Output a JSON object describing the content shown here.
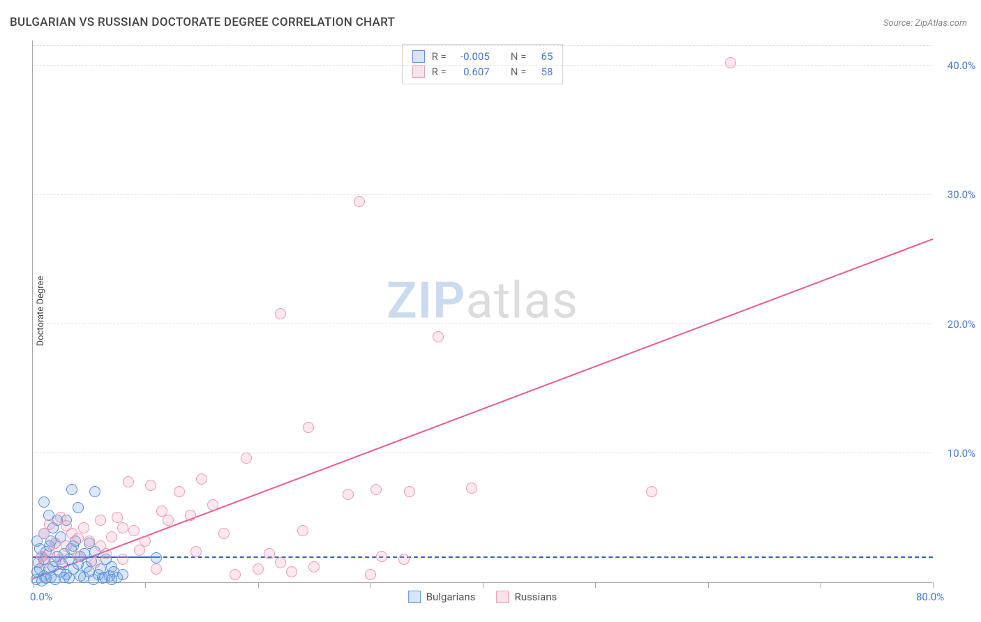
{
  "title": "BULGARIAN VS RUSSIAN DOCTORATE DEGREE CORRELATION CHART",
  "source_label": "Source: ",
  "source_name": "ZipAtlas.com",
  "ylabel": "Doctorate Degree",
  "watermark_a": "ZIP",
  "watermark_b": "atlas",
  "chart": {
    "type": "scatter",
    "xlim": [
      0,
      80
    ],
    "ylim": [
      0,
      42
    ],
    "ytick_values": [
      10,
      20,
      30,
      40
    ],
    "ytick_labels": [
      "10.0%",
      "20.0%",
      "30.0%",
      "40.0%"
    ],
    "xtick_values": [
      0,
      10,
      20,
      30,
      40,
      50,
      60,
      70,
      80
    ],
    "xtick_label_0": "0.0%",
    "xtick_label_80": "80.0%",
    "grid_color": "#dddddd",
    "axis_color": "#aaaaaa",
    "background_color": "#ffffff",
    "series": [
      {
        "name": "Bulgarians",
        "color_fill": "rgba(115,163,230,0.25)",
        "color_stroke": "#5a8fd6",
        "marker_class": "blue",
        "r_value": "-0.005",
        "n_value": "65",
        "trend": {
          "x1": 0,
          "y1": 1.9,
          "x2": 80,
          "y2": 1.9,
          "solid_until_x": 11
        },
        "points": [
          [
            0.3,
            0.2
          ],
          [
            0.4,
            0.8
          ],
          [
            0.6,
            1.0
          ],
          [
            0.5,
            1.5
          ],
          [
            0.8,
            2.0
          ],
          [
            1.0,
            0.5
          ],
          [
            1.0,
            1.8
          ],
          [
            1.2,
            2.4
          ],
          [
            1.4,
            1.0
          ],
          [
            1.5,
            2.8
          ],
          [
            1.6,
            0.4
          ],
          [
            1.8,
            1.2
          ],
          [
            2.0,
            3.0
          ],
          [
            2.0,
            1.6
          ],
          [
            2.2,
            2.0
          ],
          [
            2.4,
            0.8
          ],
          [
            2.5,
            3.5
          ],
          [
            2.6,
            1.4
          ],
          [
            2.8,
            2.2
          ],
          [
            3.0,
            0.6
          ],
          [
            3.0,
            4.8
          ],
          [
            3.2,
            1.8
          ],
          [
            3.4,
            2.6
          ],
          [
            3.5,
            7.2
          ],
          [
            3.6,
            1.0
          ],
          [
            3.8,
            3.2
          ],
          [
            4.0,
            1.4
          ],
          [
            4.0,
            5.8
          ],
          [
            4.2,
            2.0
          ],
          [
            4.5,
            0.4
          ],
          [
            4.8,
            1.2
          ],
          [
            5.0,
            3.0
          ],
          [
            5.0,
            0.8
          ],
          [
            5.2,
            1.6
          ],
          [
            5.5,
            2.4
          ],
          [
            5.5,
            7.0
          ],
          [
            5.8,
            0.6
          ],
          [
            6.0,
            1.0
          ],
          [
            6.2,
            0.3
          ],
          [
            6.5,
            1.8
          ],
          [
            6.8,
            0.5
          ],
          [
            7.0,
            1.2
          ],
          [
            7.0,
            0.2
          ],
          [
            7.2,
            0.8
          ],
          [
            7.5,
            0.4
          ],
          [
            8.0,
            0.6
          ],
          [
            1.0,
            3.8
          ],
          [
            1.8,
            4.2
          ],
          [
            2.2,
            4.8
          ],
          [
            0.8,
            0.1
          ],
          [
            1.2,
            0.3
          ],
          [
            1.6,
            3.2
          ],
          [
            2.0,
            0.2
          ],
          [
            2.8,
            0.4
          ],
          [
            3.2,
            0.3
          ],
          [
            3.6,
            2.8
          ],
          [
            4.2,
            0.5
          ],
          [
            4.6,
            2.2
          ],
          [
            5.4,
            0.2
          ],
          [
            6.4,
            0.4
          ],
          [
            1.4,
            5.2
          ],
          [
            0.6,
            2.6
          ],
          [
            0.4,
            3.2
          ],
          [
            11.0,
            1.9
          ],
          [
            1.0,
            6.2
          ]
        ]
      },
      {
        "name": "Russians",
        "color_fill": "rgba(240,140,170,0.20)",
        "color_stroke": "#ea9ab5",
        "marker_class": "pink",
        "r_value": "0.607",
        "n_value": "58",
        "trend": {
          "x1": 0,
          "y1": 0.2,
          "x2": 80,
          "y2": 26.5
        },
        "points": [
          [
            1.0,
            1.5
          ],
          [
            1.5,
            2.2
          ],
          [
            2.0,
            3.0
          ],
          [
            2.5,
            1.8
          ],
          [
            3.0,
            2.8
          ],
          [
            3.5,
            3.8
          ],
          [
            4.0,
            2.0
          ],
          [
            4.5,
            4.2
          ],
          [
            5.0,
            3.2
          ],
          [
            5.5,
            1.5
          ],
          [
            6.0,
            4.8
          ],
          [
            6.5,
            2.2
          ],
          [
            7.0,
            3.5
          ],
          [
            7.5,
            5.0
          ],
          [
            8.0,
            1.8
          ],
          [
            8.5,
            7.8
          ],
          [
            9.0,
            4.0
          ],
          [
            9.5,
            2.5
          ],
          [
            10.0,
            3.2
          ],
          [
            10.5,
            7.5
          ],
          [
            11.0,
            1.0
          ],
          [
            12.0,
            4.8
          ],
          [
            13.0,
            7.0
          ],
          [
            14.0,
            5.2
          ],
          [
            15.0,
            8.0
          ],
          [
            16.0,
            6.0
          ],
          [
            17.0,
            3.8
          ],
          [
            18.0,
            0.6
          ],
          [
            19.0,
            9.6
          ],
          [
            20.0,
            1.0
          ],
          [
            21.0,
            2.2
          ],
          [
            22.0,
            1.5
          ],
          [
            22.0,
            20.8
          ],
          [
            23.0,
            0.8
          ],
          [
            24.0,
            4.0
          ],
          [
            24.5,
            12.0
          ],
          [
            25.0,
            1.2
          ],
          [
            28.0,
            6.8
          ],
          [
            29.0,
            29.5
          ],
          [
            30.0,
            0.6
          ],
          [
            30.5,
            7.2
          ],
          [
            31.0,
            2.0
          ],
          [
            33.0,
            1.8
          ],
          [
            33.5,
            7.0
          ],
          [
            36.0,
            19.0
          ],
          [
            39.0,
            7.3
          ],
          [
            55.0,
            7.0
          ],
          [
            62.0,
            40.2
          ],
          [
            1.5,
            4.5
          ],
          [
            2.5,
            5.0
          ],
          [
            3.0,
            4.4
          ],
          [
            4.0,
            3.4
          ],
          [
            8.0,
            4.2
          ],
          [
            11.5,
            5.5
          ],
          [
            6.0,
            2.8
          ],
          [
            14.5,
            2.4
          ],
          [
            1.0,
            3.8
          ],
          [
            0.8,
            2.0
          ]
        ]
      }
    ],
    "legend_top": {
      "r_label": "R =",
      "n_label": "N ="
    },
    "legend_bottom": [
      {
        "label": "Bulgarians",
        "class": "blue"
      },
      {
        "label": "Russians",
        "class": "pink"
      }
    ]
  }
}
